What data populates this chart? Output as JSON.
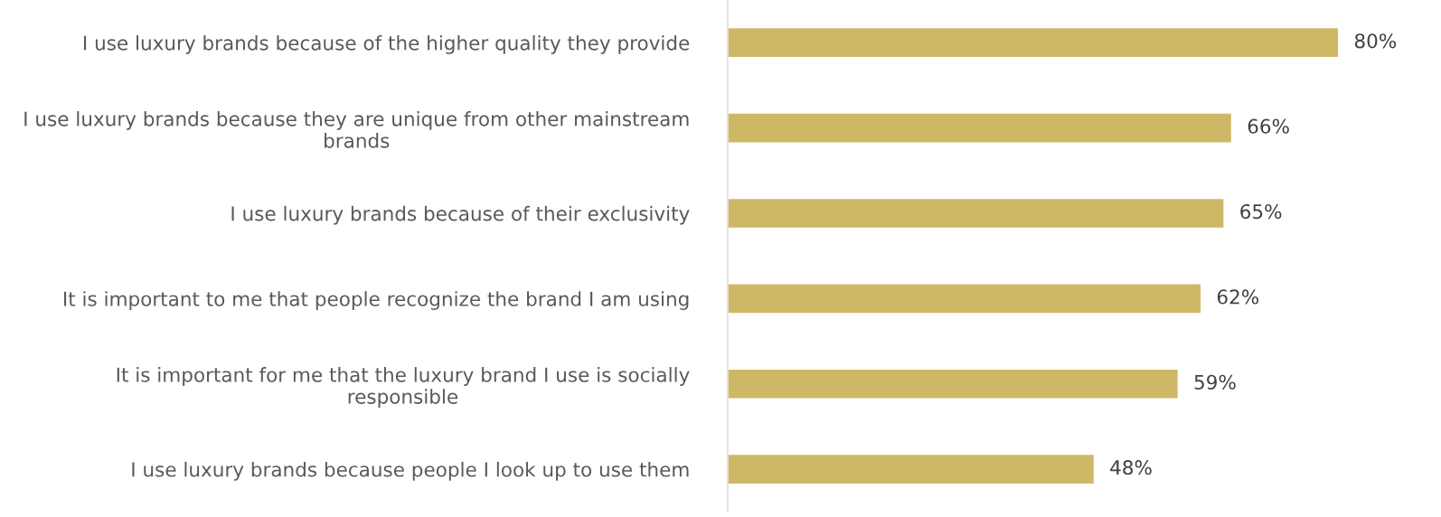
{
  "chart_data": {
    "type": "bar",
    "orientation": "horizontal",
    "categories": [
      "I use luxury brands because of the higher quality they provide",
      "I use luxury brands because they are unique from other mainstream brands",
      "I use luxury brands because of their exclusivity",
      "It is important to me that people recognize the brand I am using",
      "It is important for me that the luxury brand I use is socially responsible",
      "I use luxury brands because people I look up to use them"
    ],
    "values": [
      80,
      66,
      65,
      62,
      59,
      48
    ],
    "value_labels": [
      "80%",
      "66%",
      "65%",
      "62%",
      "59%",
      "48%"
    ],
    "color": "#cfb865",
    "grid": false,
    "legend": false
  }
}
